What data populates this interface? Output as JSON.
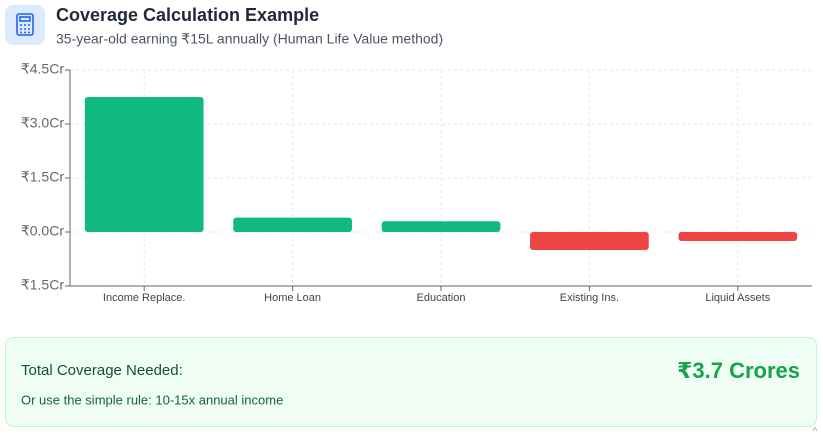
{
  "header": {
    "title": "Coverage Calculation Example",
    "subtitle": "35-year-old earning ₹15L annually (Human Life Value method)"
  },
  "chart_data": {
    "type": "bar",
    "categories": [
      "Income Replace.",
      "Home Loan",
      "Education",
      "Existing Ins.",
      "Liquid Assets"
    ],
    "values": [
      3.75,
      0.4,
      0.3,
      -0.5,
      -0.25
    ],
    "colors": [
      "#10b981",
      "#10b981",
      "#10b981",
      "#ef4444",
      "#ef4444"
    ],
    "ylim": [
      -1.5,
      4.5
    ],
    "yticks": [
      {
        "value": -1.5,
        "label": "₹1.5Cr"
      },
      {
        "value": 0,
        "label": "₹0.0Cr"
      },
      {
        "value": 1.5,
        "label": "₹1.5Cr"
      },
      {
        "value": 3,
        "label": "₹3.0Cr"
      },
      {
        "value": 4.5,
        "label": "₹4.5Cr"
      }
    ],
    "grid": true
  },
  "summary": {
    "label": "Total Coverage Needed:",
    "value": "₹3.7 Crores",
    "note": "Or use the simple rule: 10-15x annual income"
  },
  "scroll_hint": "^"
}
